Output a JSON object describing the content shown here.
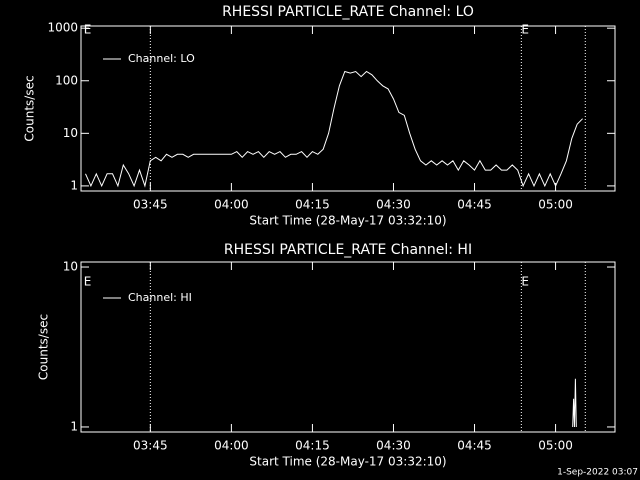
{
  "chart_data": [
    {
      "type": "line",
      "title": "RHESSI PARTICLE_RATE Channel: LO",
      "x_label": "Start Time (28-May-17 03:32:10)",
      "y_label": "Counts/sec",
      "log_y": true,
      "legend": "upper left",
      "color": "#ffffff",
      "xlim": [
        "03:32:10",
        "05:11:00"
      ],
      "xticks": [
        "03:45",
        "04:00",
        "04:15",
        "04:30",
        "04:45",
        "05:00"
      ],
      "ylim": [
        0.8,
        1100
      ],
      "yticks": [
        1,
        10,
        100,
        1000
      ],
      "vlines": [
        "03:45",
        "04:53:40",
        "05:05:30"
      ],
      "annotations": [
        {
          "text": "E",
          "x": "03:32:40"
        },
        {
          "text": "E",
          "x": "04:53:40"
        }
      ],
      "x": [
        "03:33",
        "03:34",
        "03:35",
        "03:36",
        "03:37",
        "03:38",
        "03:39",
        "03:40",
        "03:41",
        "03:42",
        "03:43",
        "03:44",
        "03:45",
        "03:46",
        "03:47",
        "03:48",
        "03:49",
        "03:50",
        "03:51",
        "03:52",
        "03:53",
        "03:54",
        "03:55",
        "03:56",
        "03:57",
        "03:58",
        "03:59",
        "04:00",
        "04:01",
        "04:02",
        "04:03",
        "04:04",
        "04:05",
        "04:06",
        "04:07",
        "04:08",
        "04:09",
        "04:10",
        "04:11",
        "04:12",
        "04:13",
        "04:14",
        "04:15",
        "04:16",
        "04:17",
        "04:18",
        "04:19",
        "04:20",
        "04:21",
        "04:22",
        "04:23",
        "04:24",
        "04:25",
        "04:26",
        "04:27",
        "04:28",
        "04:29",
        "04:30",
        "04:31",
        "04:32",
        "04:33",
        "04:34",
        "04:35",
        "04:36",
        "04:37",
        "04:38",
        "04:39",
        "04:40",
        "04:41",
        "04:42",
        "04:43",
        "04:44",
        "04:45",
        "04:46",
        "04:47",
        "04:48",
        "04:49",
        "04:50",
        "04:51",
        "04:52",
        "04:53",
        "04:54",
        "04:55",
        "04:56",
        "04:57",
        "04:58",
        "04:59",
        "05:00",
        "05:01",
        "05:02",
        "05:03",
        "05:04",
        "05:05"
      ],
      "series": [
        {
          "name": "Channel: LO",
          "color": "#ffffff",
          "values": [
            1.7,
            1,
            1.7,
            1,
            1.7,
            1.7,
            1,
            2.5,
            1.7,
            1,
            2,
            1,
            3,
            3.5,
            3,
            4,
            3.5,
            4,
            4,
            3.5,
            4,
            4,
            4,
            4,
            4,
            4,
            4,
            4,
            4.5,
            3.5,
            4.5,
            4,
            4.5,
            3.5,
            4.5,
            4,
            4.5,
            3.5,
            4,
            4,
            4.5,
            3.5,
            4.5,
            4,
            5,
            10,
            30,
            80,
            150,
            140,
            150,
            120,
            150,
            130,
            100,
            80,
            70,
            45,
            25,
            22,
            10,
            5,
            3,
            2.5,
            3,
            2.5,
            3,
            2.5,
            3,
            2,
            3,
            2.5,
            2,
            3,
            2,
            2,
            2.5,
            2,
            2,
            2.5,
            2,
            1,
            1.7,
            1,
            1.7,
            1,
            1.7,
            1,
            1.7,
            3,
            8,
            15,
            19
          ]
        }
      ]
    },
    {
      "type": "line",
      "title": "RHESSI PARTICLE_RATE Channel: HI",
      "x_label": "Start Time (28-May-17 03:32:10)",
      "y_label": "Counts/sec",
      "log_y": true,
      "legend": "upper left",
      "color": "#ffffff",
      "xlim": [
        "03:32:10",
        "05:11:00"
      ],
      "xticks": [
        "03:45",
        "04:00",
        "04:15",
        "04:30",
        "04:45",
        "05:00"
      ],
      "ylim": [
        0.93,
        10.75
      ],
      "yticks": [
        1,
        10
      ],
      "vlines": [
        "03:45",
        "04:53:40",
        "05:05:30"
      ],
      "annotations": [
        {
          "text": "E",
          "x": "03:32:40"
        },
        {
          "text": "E",
          "x": "04:53:40"
        }
      ],
      "x": [
        "05:03:10",
        "05:03:20",
        "05:03:30",
        "05:03:40",
        "05:03:50"
      ],
      "series": [
        {
          "name": "Channel: HI",
          "color": "#ffffff",
          "values": [
            1,
            1.5,
            1,
            2,
            1
          ]
        }
      ]
    }
  ],
  "footer": "1-Sep-2022 03:07"
}
